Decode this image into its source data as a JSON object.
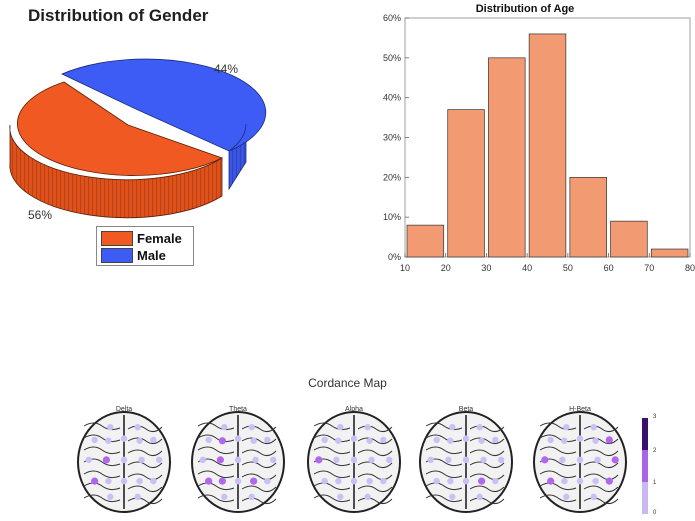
{
  "gender_chart": {
    "title": "Distribution of Gender",
    "labels": {
      "male_pct": "44%",
      "female_pct": "56%"
    },
    "legend": [
      {
        "label": "Female",
        "color": "#f05a22"
      },
      {
        "label": "Male",
        "color": "#3d5cf5"
      }
    ]
  },
  "age_chart": {
    "title": "Distribution of Age",
    "bar_color": "#f29a72"
  },
  "cordance": {
    "title": "Cordance Map",
    "bands": [
      "Delta",
      "Theta",
      "Alpha",
      "Beta",
      "H-Beta"
    ],
    "colorbar_ticks": [
      "3",
      "2",
      "1",
      "0"
    ],
    "colorbar_colors": [
      "#3b0f6b",
      "#a866e6",
      "#c9b8f2"
    ]
  },
  "chart_data": [
    {
      "type": "pie",
      "title": "Distribution of Gender",
      "labels": [
        "Female",
        "Male"
      ],
      "values": [
        56,
        44
      ]
    },
    {
      "type": "bar",
      "title": "Distribution of Age",
      "bins": [
        [
          10,
          20
        ],
        [
          20,
          30
        ],
        [
          30,
          40
        ],
        [
          40,
          50
        ],
        [
          50,
          60
        ],
        [
          60,
          70
        ],
        [
          70,
          80
        ]
      ],
      "values": [
        8,
        37,
        50,
        56,
        20,
        9,
        2
      ],
      "x_ticks": [
        "10",
        "20",
        "30",
        "40",
        "50",
        "60",
        "70",
        "80"
      ],
      "y_ticks": [
        "0%",
        "10%",
        "20%",
        "30%",
        "40%",
        "50%",
        "60%"
      ],
      "ylim": [
        0,
        60
      ],
      "xlim": [
        10,
        80
      ]
    }
  ]
}
